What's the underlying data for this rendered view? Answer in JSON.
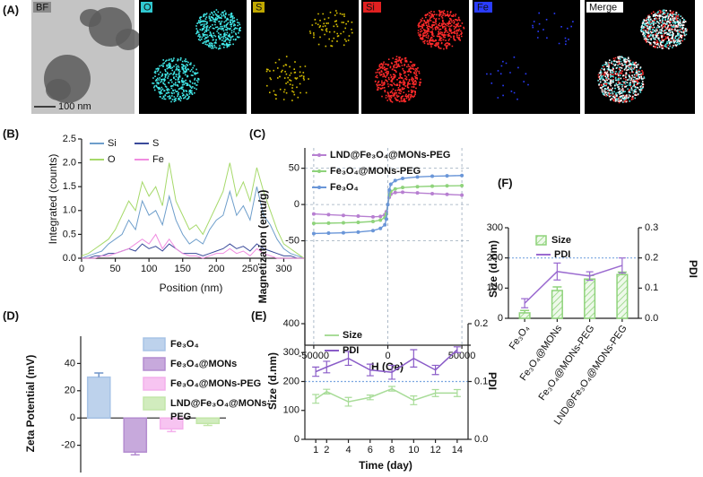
{
  "panel_a": {
    "label": "(A)",
    "channels": [
      "BF",
      "O",
      "S",
      "Si",
      "Fe",
      "Merge"
    ],
    "scale_bar": "100 nm"
  },
  "chart_data": [
    {
      "type": "line",
      "panel": "(B)",
      "xlabel": "Position (nm)",
      "ylabel": "Integrated (counts)",
      "x": [
        0,
        10,
        20,
        30,
        40,
        50,
        60,
        70,
        80,
        90,
        100,
        110,
        120,
        130,
        140,
        150,
        160,
        170,
        180,
        190,
        200,
        210,
        220,
        230,
        240,
        250,
        260,
        270,
        280,
        290,
        300,
        310,
        320,
        330
      ],
      "xlim": [
        0,
        330
      ],
      "xticks": [
        0,
        50,
        100,
        150,
        200,
        250,
        300
      ],
      "ylim": [
        0,
        2.5
      ],
      "yticks": [
        {
          "value": 0,
          "label": "0.0"
        },
        0.5,
        {
          "value": 1,
          "label": "1.0"
        },
        1.5,
        {
          "value": 2,
          "label": "2.0"
        },
        2.5
      ],
      "series": [
        {
          "name": "Si",
          "color": "#6e9ecb",
          "values": [
            0,
            0.05,
            0.1,
            0.15,
            0.3,
            0.4,
            0.5,
            0.8,
            0.6,
            1.2,
            0.9,
            1.0,
            0.7,
            1.3,
            0.8,
            0.5,
            0.3,
            0.4,
            0.3,
            0.6,
            0.8,
            0.9,
            1.4,
            0.9,
            1.1,
            0.8,
            1.5,
            0.9,
            0.7,
            0.4,
            0.2,
            0.1,
            0.05,
            0
          ]
        },
        {
          "name": "S",
          "color": "#3a4a9a",
          "values": [
            0,
            0,
            0.05,
            0.05,
            0.1,
            0.1,
            0.15,
            0.2,
            0.15,
            0.3,
            0.2,
            0.25,
            0.15,
            0.3,
            0.2,
            0.1,
            0.1,
            0.1,
            0.05,
            0.1,
            0.15,
            0.2,
            0.3,
            0.2,
            0.25,
            0.15,
            0.3,
            0.2,
            0.15,
            0.1,
            0.05,
            0.05,
            0,
            0
          ]
        },
        {
          "name": "O",
          "color": "#a6d96a",
          "values": [
            0.05,
            0.1,
            0.2,
            0.3,
            0.4,
            0.6,
            0.9,
            1.2,
            1.0,
            1.6,
            1.3,
            1.5,
            1.1,
            2.0,
            1.2,
            0.9,
            0.6,
            0.7,
            0.5,
            0.8,
            1.1,
            1.4,
            2.0,
            1.3,
            1.6,
            1.2,
            1.9,
            1.4,
            1.0,
            0.6,
            0.3,
            0.2,
            0.1,
            0
          ]
        },
        {
          "name": "Fe",
          "color": "#f08ce0",
          "values": [
            0,
            0,
            0,
            0.05,
            0.05,
            0.1,
            0.15,
            0.2,
            0.3,
            0.4,
            0.3,
            0.5,
            0.2,
            0.4,
            0.2,
            0.1,
            0.05,
            0.05,
            0,
            0.05,
            0.1,
            0.1,
            0.2,
            0.1,
            0.15,
            0.05,
            0.2,
            0.1,
            0.05,
            0,
            0,
            0,
            0,
            0
          ]
        }
      ]
    },
    {
      "type": "line",
      "panel": "(C)",
      "xlabel": "H (Oe)",
      "ylabel": "Magnetization (emu/g)",
      "grid": true,
      "markers": true,
      "x": [
        -50000,
        -40000,
        -30000,
        -20000,
        -10000,
        -5000,
        -2000,
        -1000,
        0,
        1000,
        2000,
        5000,
        10000,
        20000,
        30000,
        40000,
        50000
      ],
      "xlim": [
        -56000,
        56000
      ],
      "xticks": [
        -50000,
        0,
        50000
      ],
      "ylim": [
        -194,
        78
      ],
      "yticks": [
        -50,
        0,
        50
      ],
      "series": [
        {
          "name": "LND@Fe₃O₄@MONs-PEG",
          "color": "#b77fd1",
          "values": [
            -13,
            -14,
            -15,
            -16,
            -17,
            -16.5,
            -14,
            -10,
            0,
            10,
            14,
            16.5,
            17,
            16,
            15,
            14,
            13
          ]
        },
        {
          "name": "Fe₃O₄@MONs-PEG",
          "color": "#8fd37b",
          "values": [
            -26,
            -25.7,
            -25.3,
            -24.6,
            -23.4,
            -21.5,
            -18,
            -13,
            0,
            13,
            18,
            21.5,
            23.4,
            24.6,
            25.3,
            25.7,
            26
          ]
        },
        {
          "name": "Fe₃O₄",
          "color": "#6a96d8",
          "values": [
            -40,
            -39.5,
            -39,
            -38,
            -36,
            -33,
            -28,
            -20,
            0,
            20,
            28,
            33,
            36,
            38,
            39,
            39.5,
            40
          ]
        }
      ]
    },
    {
      "type": "bar",
      "panel": "(D)",
      "ylabel": "Zeta Potential (mV)",
      "ylim": [
        -40,
        60
      ],
      "yticks": [
        -20,
        0,
        20,
        40
      ],
      "series": [
        {
          "name": "Fe₃O₄",
          "color": "#a7c3e6",
          "values": [
            30
          ],
          "errors": [
            3
          ]
        },
        {
          "name": "Fe₃O₄@MONs",
          "color": "#b48cd0",
          "values": [
            -25
          ],
          "errors": [
            2
          ]
        },
        {
          "name": "Fe₃O₄@MONs-PEG",
          "color": "#f4b0ec",
          "values": [
            -8
          ],
          "errors": [
            2
          ]
        },
        {
          "name": "LND@Fe₃O₄@MONs-PEG",
          "color": "#c2e6a8",
          "values": [
            -4
          ],
          "errors": [
            1.5
          ]
        }
      ]
    },
    {
      "type": "line",
      "panel": "(E)",
      "xlabel": "Time (day)",
      "ylabel": "Size (d.nm)",
      "y2label": "PDI",
      "x": [
        1,
        2,
        4,
        6,
        8,
        10,
        12,
        14
      ],
      "xlim": [
        0,
        15
      ],
      "xticks": [
        1,
        2,
        4,
        6,
        8,
        10,
        12,
        14
      ],
      "ylim": [
        0,
        400
      ],
      "yticks": [
        0,
        100,
        200,
        300,
        400
      ],
      "y2lim": [
        0,
        0.2
      ],
      "y2ticks": [
        {
          "value": 0,
          "label": "0.0"
        },
        0.1,
        0.2
      ],
      "reference_line": 200,
      "reference_color": "#7aa6e0",
      "series": [
        {
          "name": "Size",
          "color": "#a8dc98",
          "values": [
            140,
            165,
            130,
            145,
            175,
            135,
            160,
            160
          ],
          "errors": [
            15,
            8,
            15,
            8,
            8,
            15,
            12,
            12
          ]
        },
        {
          "name": "PDI",
          "color": "#8a5cc8",
          "axis": "y2",
          "values": [
            0.117,
            0.125,
            0.14,
            0.12,
            0.116,
            0.14,
            0.12,
            0.155
          ],
          "errors": [
            0.008,
            0.01,
            0.012,
            0.01,
            0.012,
            0.015,
            0.008,
            0.005
          ]
        }
      ]
    },
    {
      "type": "bar",
      "panel": "(F)",
      "ylabel": "Size (d.nm)",
      "y2label": "PDI",
      "categories": [
        "Fe₃O₄",
        "Fe₃O₄@MONs",
        "Fe₃O₄@MONs-PEG",
        "LND@Fe₃O₄@MONs-PEG"
      ],
      "ylim": [
        0,
        300
      ],
      "yticks": [
        0,
        100,
        200,
        300
      ],
      "y2lim": [
        0,
        0.3
      ],
      "y2ticks": [
        {
          "value": 0,
          "label": "0.0"
        },
        0.1,
        0.2,
        0.3
      ],
      "reference_line": 200,
      "reference_color": "#7aa6e0",
      "series": [
        {
          "name": "Size",
          "color": "#8fd37b",
          "pattern": "hatch",
          "values": [
            18,
            92,
            130,
            145
          ],
          "errors": [
            8,
            12,
            12,
            8
          ]
        },
        {
          "name": "PDI",
          "type": "line",
          "color": "#9b6bd0",
          "axis": "y2",
          "values": [
            0.05,
            0.155,
            0.14,
            0.175
          ],
          "errors": [
            0.015,
            0.028,
            0.014,
            0.025
          ]
        }
      ]
    }
  ]
}
